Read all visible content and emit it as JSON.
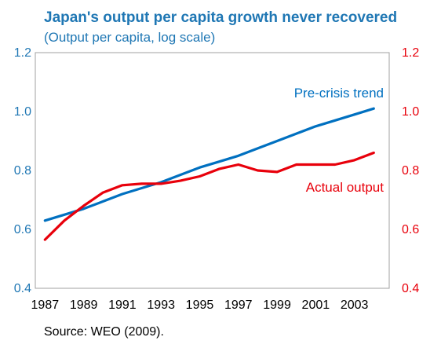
{
  "chart_data": {
    "type": "line",
    "title": "Japan's output per capita growth never recovered",
    "subtitle": "(Output per capita, log scale)",
    "source": "Source: WEO (2009).",
    "x_tick_labels": [
      "1987",
      "1989",
      "1991",
      "1993",
      "1995",
      "1997",
      "1999",
      "2001",
      "2003"
    ],
    "y_left_tick_labels": [
      "1.2",
      "1.0",
      "0.8",
      "0.6",
      "0.4"
    ],
    "y_right_tick_labels": [
      "1.2",
      "1.0",
      "0.8",
      "0.6",
      "0.4"
    ],
    "xlim": [
      1986.5,
      2004.8
    ],
    "ylim": [
      0.4,
      1.2
    ],
    "y_left_color": "#1f77b4",
    "y_right_color": "#e8000b",
    "title_color": "#1f77b4",
    "series": [
      {
        "name": "Pre-crisis trend",
        "color": "#0070c0",
        "x": [
          1987,
          1988,
          1989,
          1990,
          1991,
          1992,
          1993,
          1994,
          1995,
          1996,
          1997,
          1998,
          1999,
          2000,
          2001,
          2002,
          2003,
          2004
        ],
        "values": [
          0.63,
          0.65,
          0.67,
          0.695,
          0.72,
          0.74,
          0.76,
          0.785,
          0.81,
          0.83,
          0.85,
          0.875,
          0.9,
          0.925,
          0.95,
          0.97,
          0.99,
          1.01
        ]
      },
      {
        "name": "Actual output",
        "color": "#e8000b",
        "x": [
          1987,
          1988,
          1989,
          1990,
          1991,
          1992,
          1993,
          1994,
          1995,
          1996,
          1997,
          1998,
          1999,
          2000,
          2001,
          2002,
          2003,
          2004
        ],
        "values": [
          0.565,
          0.63,
          0.68,
          0.725,
          0.75,
          0.755,
          0.755,
          0.765,
          0.78,
          0.805,
          0.82,
          0.8,
          0.795,
          0.82,
          0.82,
          0.82,
          0.835,
          0.86
        ]
      }
    ]
  }
}
